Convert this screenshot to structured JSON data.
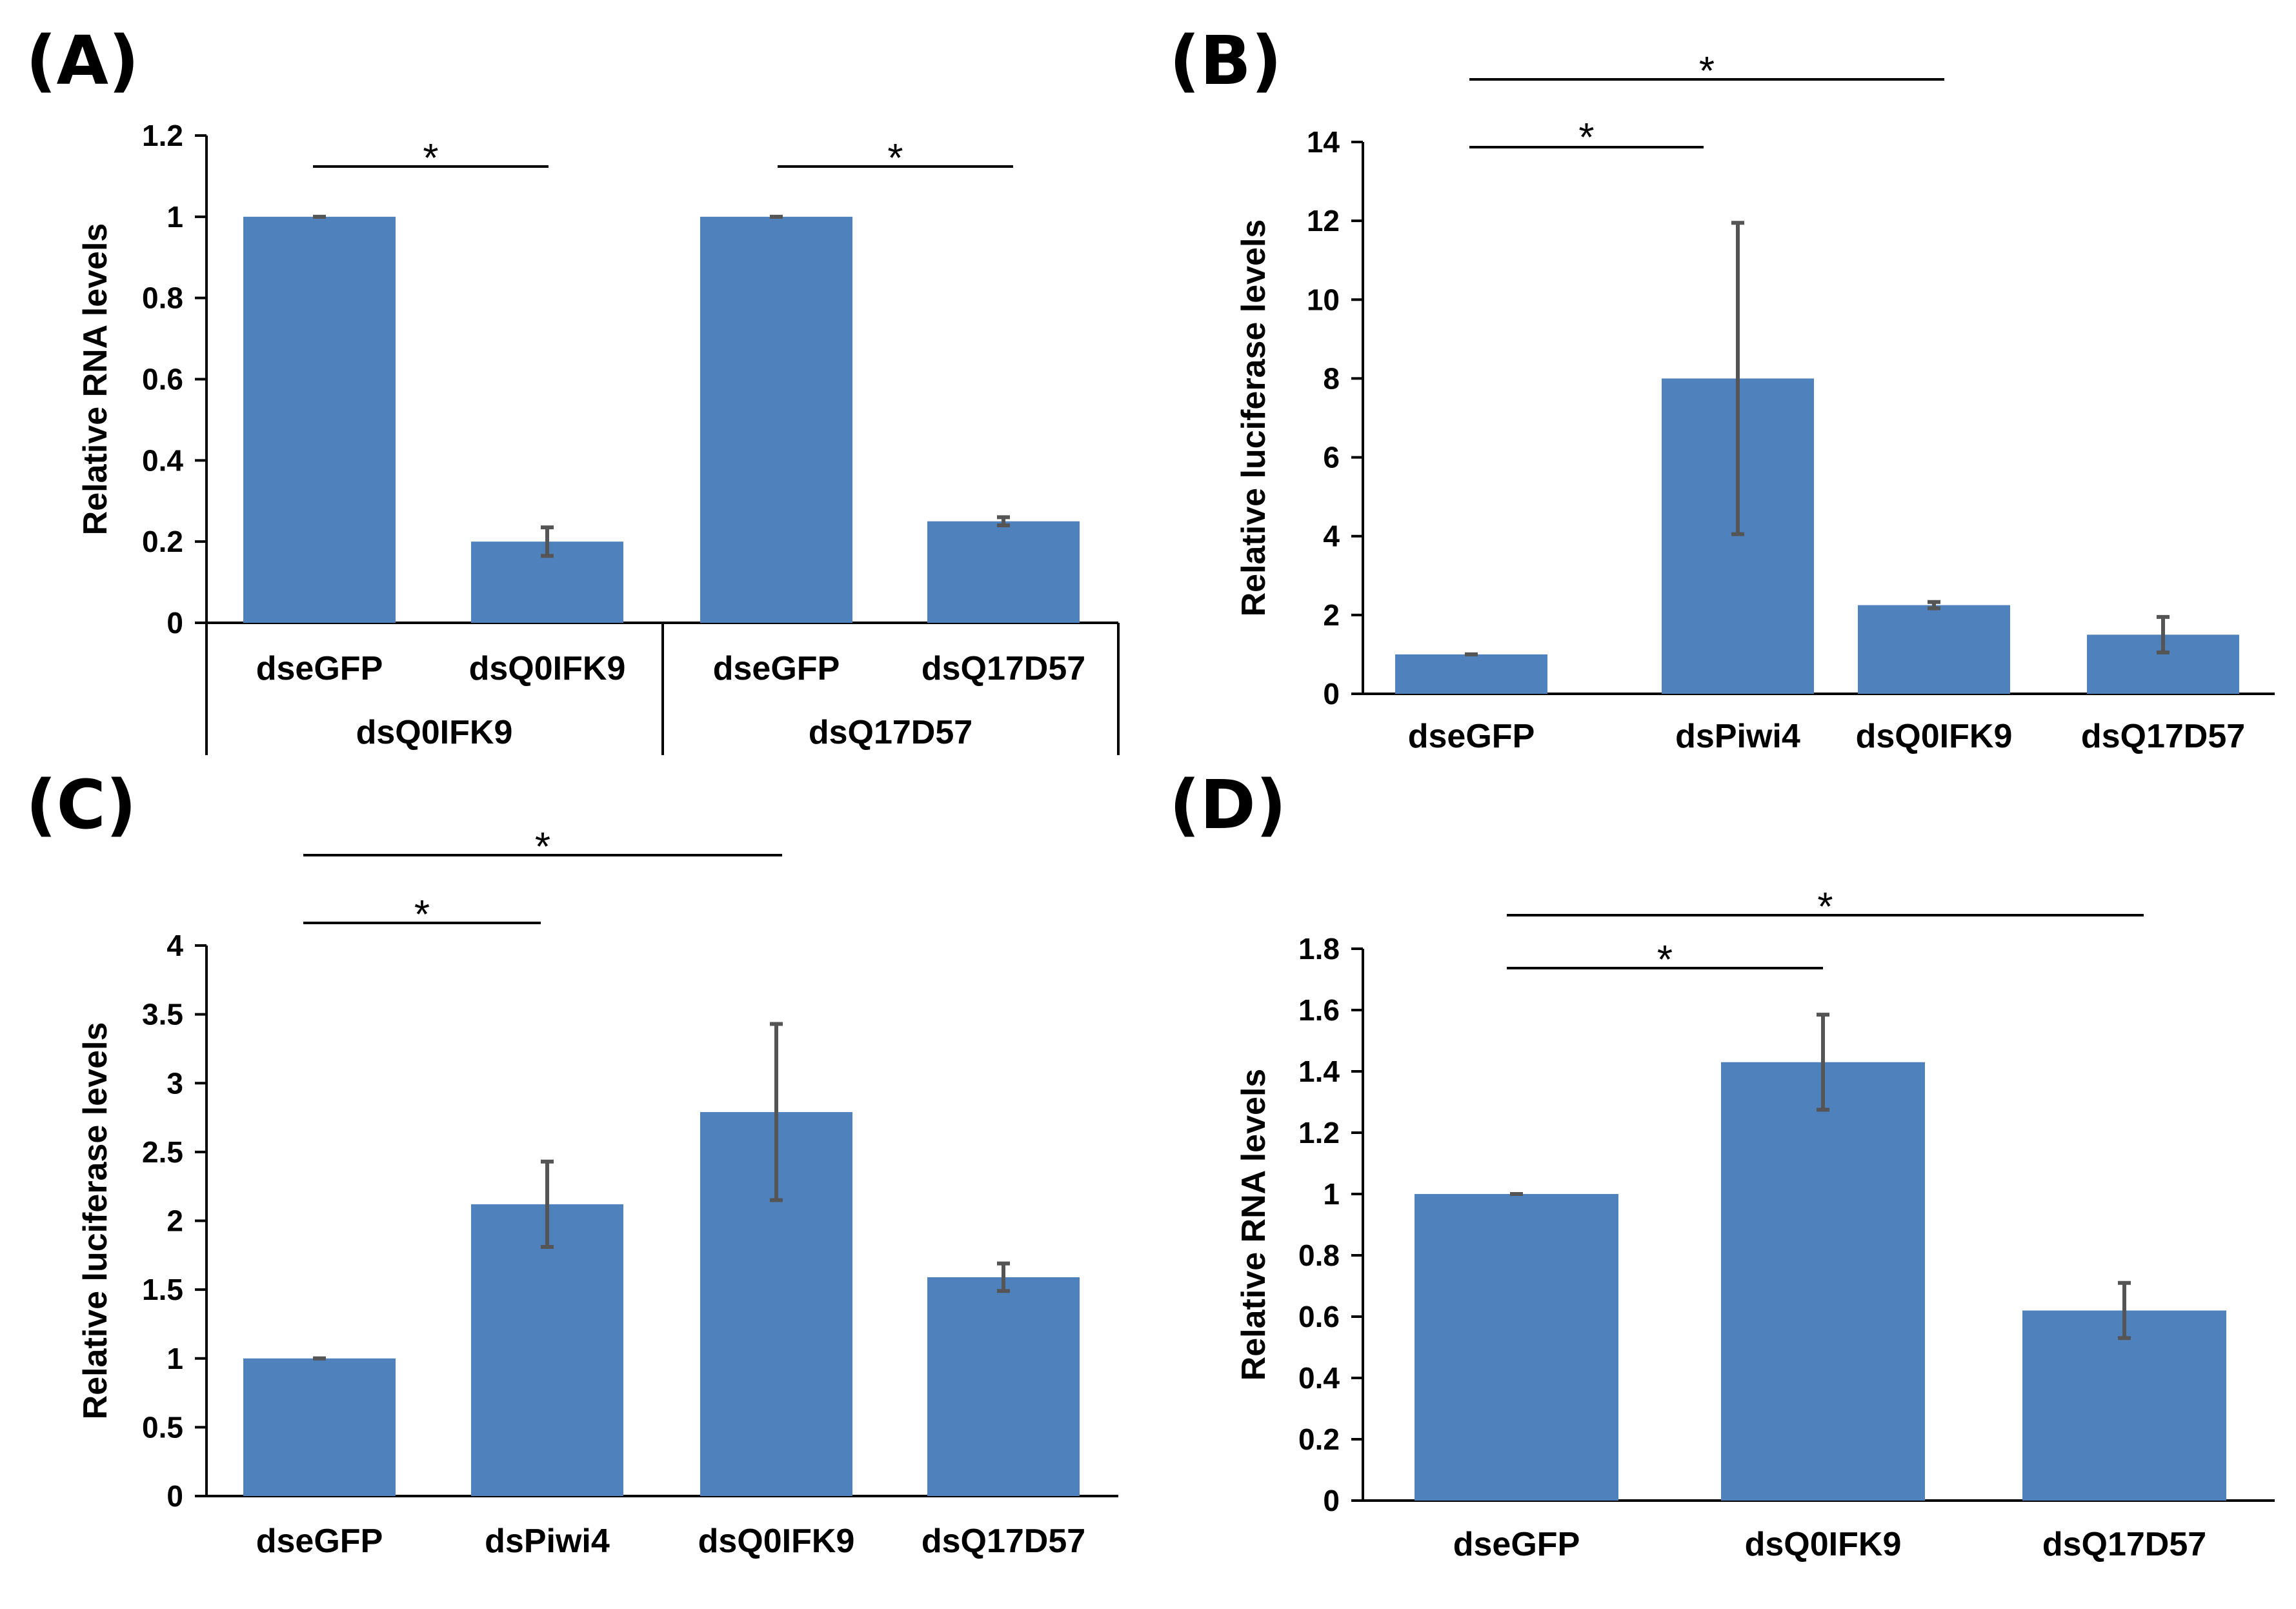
{
  "colors": {
    "bar": "#4f81bd",
    "error_bar": "#555555",
    "axis": "#000000"
  },
  "chart_data": [
    {
      "panel": "(A)",
      "type": "bar",
      "ylabel": "Relative RNA levels",
      "ylim": [
        0,
        1.2
      ],
      "yticks": [
        "0",
        "0.2",
        "0.4",
        "0.6",
        "0.8",
        "1",
        "1.2"
      ],
      "categories": [
        "dseGFP",
        "dsQ0IFK9",
        "dseGFP",
        "dsQ17D57"
      ],
      "groups": [
        "dsQ0IFK9",
        "dsQ17D57"
      ],
      "values": [
        1.0,
        0.2,
        1.0,
        0.25
      ],
      "errors": [
        0.0,
        0.035,
        0.0,
        0.01
      ],
      "significance": [
        {
          "from": 0,
          "to": 1,
          "label": "*"
        },
        {
          "from": 2,
          "to": 3,
          "label": "*"
        }
      ]
    },
    {
      "panel": "(B)",
      "type": "bar",
      "ylabel": "Relative luciferase  levels",
      "ylim": [
        0,
        14
      ],
      "yticks": [
        "0",
        "2",
        "4",
        "6",
        "8",
        "10",
        "12",
        "14"
      ],
      "categories": [
        "dseGFP",
        "dsPiwi4",
        "dsQ0IFK9",
        "dsQ17D57"
      ],
      "values": [
        1.0,
        8.0,
        2.25,
        1.5
      ],
      "errors": [
        0.0,
        3.95,
        0.08,
        0.45
      ],
      "significance": [
        {
          "from": 0,
          "to": 1,
          "label": "*"
        },
        {
          "from": 0,
          "to": 2,
          "label": "*"
        }
      ]
    },
    {
      "panel": "(C)",
      "type": "bar",
      "ylabel": "Relative luciferase levels",
      "ylim": [
        0,
        4
      ],
      "yticks": [
        "0",
        "0.5",
        "1",
        "1.5",
        "2",
        "2.5",
        "3",
        "3.5",
        "4"
      ],
      "categories": [
        "dseGFP",
        "dsPiwi4",
        "dsQ0IFK9",
        "dsQ17D57"
      ],
      "values": [
        1.0,
        2.12,
        2.79,
        1.59
      ],
      "errors": [
        0.0,
        0.31,
        0.64,
        0.1
      ],
      "significance": [
        {
          "from": 0,
          "to": 1,
          "label": "*"
        },
        {
          "from": 0,
          "to": 2,
          "label": "*"
        }
      ]
    },
    {
      "panel": "(D)",
      "type": "bar",
      "ylabel": "Relative RNA levels",
      "ylim": [
        0,
        1.8
      ],
      "yticks": [
        "0",
        "0.2",
        "0.4",
        "0.6",
        "0.8",
        "1",
        "1.2",
        "1.4",
        "1.6",
        "1.8"
      ],
      "categories": [
        "dseGFP",
        "dsQ0IFK9",
        "dsQ17D57"
      ],
      "values": [
        1.0,
        1.43,
        0.62
      ],
      "errors": [
        0.0,
        0.155,
        0.09
      ],
      "significance": [
        {
          "from": 0,
          "to": 1,
          "label": "*"
        },
        {
          "from": 0,
          "to": 2,
          "label": "*"
        }
      ]
    }
  ]
}
